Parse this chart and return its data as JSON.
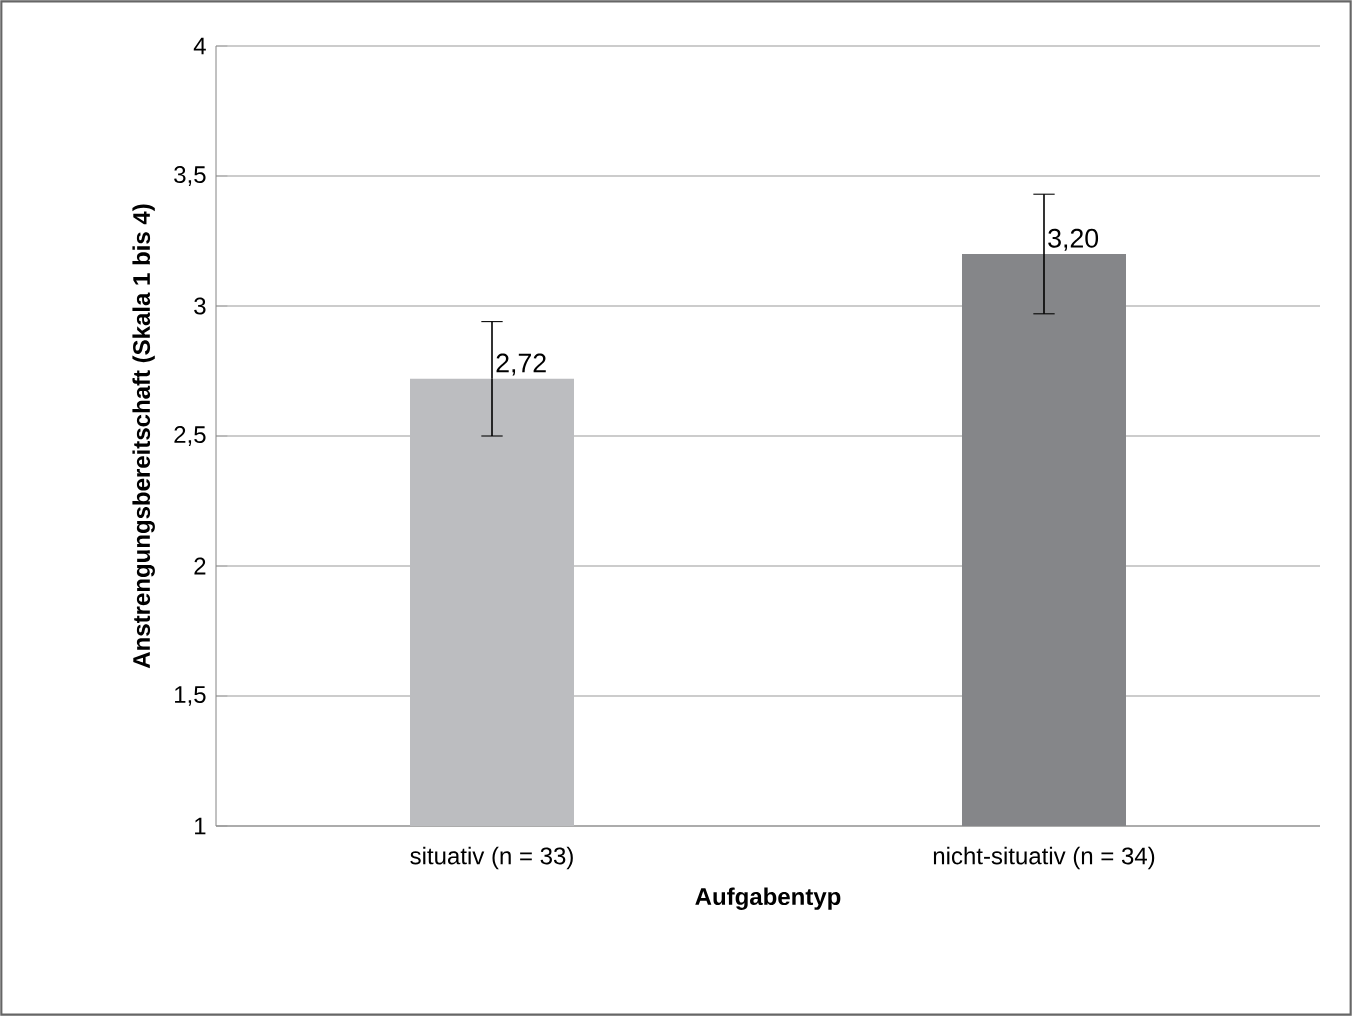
{
  "chart_data": {
    "type": "bar",
    "xlabel": "Aufgabentyp",
    "ylabel": "Anstrengungsbereitschaft (Skala 1 bis 4)",
    "categories": [
      "situativ (n = 33)",
      "nicht-situativ (n = 34)"
    ],
    "values": [
      2.72,
      3.2
    ],
    "colors": [
      "#bcbdc0",
      "#858689"
    ],
    "errors": [
      0.22,
      0.23
    ],
    "value_labels": [
      "2,72",
      "3,20"
    ],
    "ylim": [
      1,
      4
    ],
    "yticks": [
      1,
      {
        "value": 1.5,
        "label": "1,5"
      },
      2,
      {
        "value": 2.5,
        "label": "2,5"
      },
      3,
      {
        "value": 3.5,
        "label": "3,5"
      },
      4
    ],
    "grid": "y"
  }
}
